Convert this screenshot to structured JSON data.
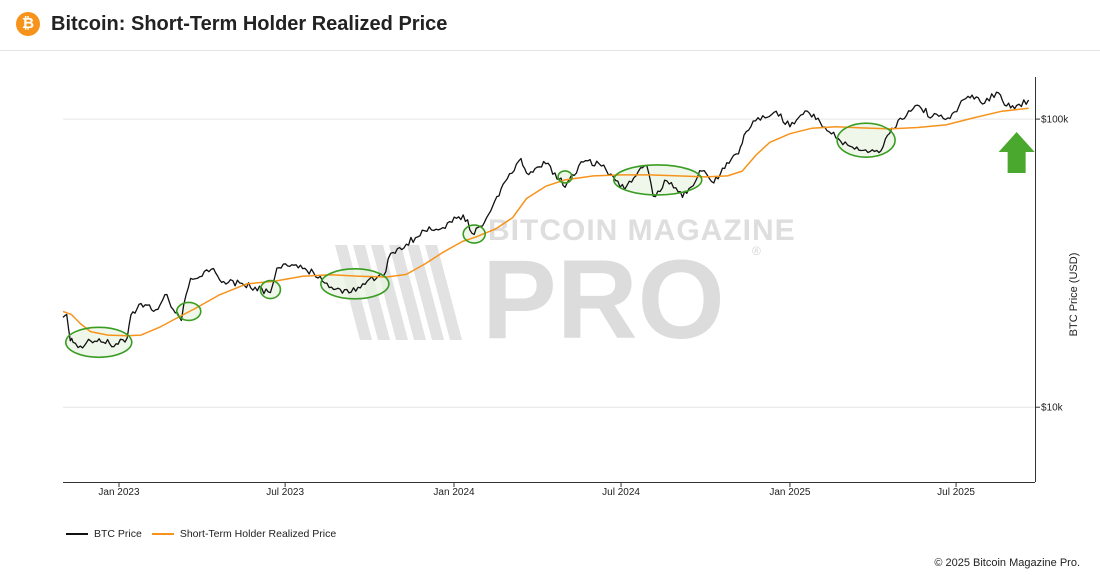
{
  "header": {
    "logo_glyph": "₿",
    "title": "Bitcoin: Short-Term Holder Realized Price"
  },
  "watermark": {
    "line1": "BITCOIN MAGAZINE",
    "line2": "PRO",
    "registered": "®"
  },
  "copyright": "© 2025 Bitcoin Magazine Pro.",
  "colors": {
    "btc_price": "#111111",
    "sth_realized": "#f7931a",
    "highlight_circle": "#3a9d23",
    "highlight_fill": "#e9f4e3",
    "arrow": "#4aa82e"
  },
  "chart_data": {
    "type": "line",
    "title": "Bitcoin: Short-Term Holder Realized Price",
    "ylabel": "BTC Price (USD)",
    "xlabel": "",
    "y_scale": "log",
    "ylim": [
      5500,
      140000
    ],
    "xlim": [
      "2022-11-01",
      "2025-09-25"
    ],
    "x_ticks": [
      "Jan 2023",
      "Jul 2023",
      "Jan 2024",
      "Jul 2024",
      "Jan 2025",
      "Jul 2025"
    ],
    "x_tick_dates": [
      "2023-01-01",
      "2023-07-01",
      "2024-01-01",
      "2024-07-01",
      "2025-01-01",
      "2025-07-01"
    ],
    "y_ticks": [
      "$10k",
      "$100k"
    ],
    "y_tick_values": [
      10000,
      100000
    ],
    "grid": true,
    "legend_position": "bottom-left",
    "series": [
      {
        "name": "BTC Price",
        "x": [
          "2022-11-01",
          "2022-11-05",
          "2022-11-09",
          "2022-11-12",
          "2022-11-20",
          "2022-12-01",
          "2022-12-15",
          "2022-12-31",
          "2023-01-10",
          "2023-01-14",
          "2023-01-25",
          "2023-02-10",
          "2023-02-20",
          "2023-03-10",
          "2023-03-15",
          "2023-03-20",
          "2023-04-14",
          "2023-04-25",
          "2023-05-15",
          "2023-06-15",
          "2023-06-22",
          "2023-07-13",
          "2023-08-01",
          "2023-08-18",
          "2023-09-11",
          "2023-10-01",
          "2023-10-16",
          "2023-10-24",
          "2023-11-10",
          "2023-12-05",
          "2023-12-20",
          "2024-01-11",
          "2024-01-23",
          "2024-02-10",
          "2024-02-28",
          "2024-03-14",
          "2024-03-20",
          "2024-04-10",
          "2024-04-20",
          "2024-05-01",
          "2024-05-21",
          "2024-06-07",
          "2024-06-20",
          "2024-07-05",
          "2024-07-20",
          "2024-07-29",
          "2024-08-05",
          "2024-08-20",
          "2024-09-06",
          "2024-09-27",
          "2024-10-10",
          "2024-10-29",
          "2024-11-06",
          "2024-11-12",
          "2024-11-22",
          "2024-12-05",
          "2024-12-17",
          "2025-01-01",
          "2025-01-20",
          "2025-02-03",
          "2025-02-25",
          "2025-03-10",
          "2025-04-08",
          "2025-04-22",
          "2025-05-08",
          "2025-05-22",
          "2025-06-05",
          "2025-06-22",
          "2025-07-14",
          "2025-08-01",
          "2025-08-14",
          "2025-08-25",
          "2025-09-05",
          "2025-09-18"
        ],
        "values": [
          20500,
          21000,
          17000,
          16800,
          16300,
          17000,
          16800,
          16550,
          17400,
          20900,
          22900,
          21800,
          24600,
          20000,
          24500,
          28000,
          30300,
          27300,
          26900,
          25000,
          30400,
          31200,
          29300,
          26000,
          25100,
          27900,
          28500,
          34200,
          36800,
          42300,
          42000,
          46500,
          39800,
          48000,
          62000,
          73000,
          65000,
          70000,
          65000,
          58000,
          71000,
          70000,
          64500,
          57000,
          66000,
          69000,
          54000,
          61000,
          53500,
          66000,
          60000,
          72500,
          75800,
          88000,
          98500,
          101000,
          106500,
          94000,
          106500,
          97500,
          84000,
          80000,
          76500,
          93000,
          103000,
          111000,
          102000,
          101000,
          120000,
          113500,
          124000,
          111000,
          111500,
          116500
        ]
      },
      {
        "name": "Short-Term Holder Realized Price",
        "x": [
          "2022-11-01",
          "2022-11-10",
          "2022-11-20",
          "2022-12-01",
          "2022-12-20",
          "2023-01-10",
          "2023-01-25",
          "2023-02-15",
          "2023-03-10",
          "2023-03-25",
          "2023-04-20",
          "2023-05-20",
          "2023-06-20",
          "2023-07-20",
          "2023-08-20",
          "2023-09-20",
          "2023-10-20",
          "2023-11-10",
          "2023-12-01",
          "2023-12-20",
          "2024-01-10",
          "2024-01-25",
          "2024-02-15",
          "2024-03-05",
          "2024-03-20",
          "2024-04-10",
          "2024-05-01",
          "2024-06-01",
          "2024-07-01",
          "2024-08-01",
          "2024-09-01",
          "2024-10-01",
          "2024-10-25",
          "2024-11-10",
          "2024-11-25",
          "2024-12-10",
          "2025-01-01",
          "2025-01-25",
          "2025-02-20",
          "2025-03-20",
          "2025-04-20",
          "2025-05-20",
          "2025-06-20",
          "2025-07-20",
          "2025-08-20",
          "2025-09-18"
        ],
        "values": [
          21500,
          21000,
          19500,
          18300,
          17800,
          17700,
          17800,
          19000,
          20800,
          22000,
          24500,
          26800,
          27400,
          28500,
          28800,
          28500,
          28300,
          28900,
          31500,
          34500,
          37600,
          39000,
          41500,
          45500,
          53000,
          58500,
          61500,
          63500,
          64000,
          64000,
          63500,
          63000,
          63500,
          66000,
          75000,
          83000,
          89000,
          93000,
          94000,
          93200,
          92500,
          93500,
          95500,
          101000,
          106500,
          109000
        ]
      }
    ],
    "annotations": [
      {
        "type": "ellipse",
        "date": "2022-12-10",
        "value": 16800
      },
      {
        "type": "ellipse",
        "date": "2023-03-18",
        "value": 21500
      },
      {
        "type": "ellipse",
        "date": "2023-06-15",
        "value": 25600
      },
      {
        "type": "ellipse",
        "date": "2023-09-15",
        "value": 26800
      },
      {
        "type": "ellipse",
        "date": "2024-01-23",
        "value": 39900
      },
      {
        "type": "ellipse",
        "date": "2024-05-01",
        "value": 63000
      },
      {
        "type": "ellipse",
        "date": "2024-08-10",
        "value": 61500
      },
      {
        "type": "ellipse",
        "date": "2025-03-25",
        "value": 84500
      },
      {
        "type": "arrow",
        "direction": "up",
        "date": "2025-09-05"
      }
    ]
  }
}
